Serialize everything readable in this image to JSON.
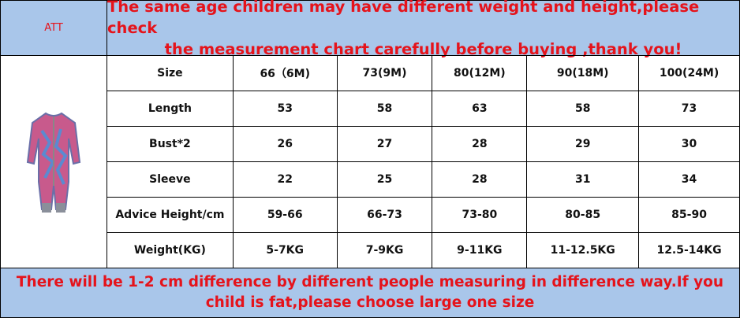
{
  "header": {
    "label": "ATT",
    "title_lines": [
      "The same age children may have different weight and height,please check",
      "the measurement chart carefully before buying ,thank you!"
    ]
  },
  "table": {
    "rows": [
      [
        "Size",
        "66（6M)",
        "73(9M)",
        "80(12M)",
        "90(18M)",
        "100(24M)"
      ],
      [
        "Length",
        53,
        58,
        63,
        58,
        73
      ],
      [
        "Bust*2",
        26,
        27,
        28,
        29,
        30
      ],
      [
        "Sleeve",
        22,
        25,
        28,
        31,
        34
      ],
      [
        "Advice Height/cm",
        "59-66",
        "66-73",
        "73-80",
        "80-85",
        "85-90"
      ],
      [
        "Weight(KG)",
        "5-7KG",
        "7-9KG",
        "9-11KG",
        "11-12.5KG",
        "12.5-14KG"
      ]
    ]
  },
  "footer": {
    "lines": [
      "There will be 1-2 cm difference by different people measuring in difference way.If you",
      "child is fat,please choose large one size"
    ]
  }
}
